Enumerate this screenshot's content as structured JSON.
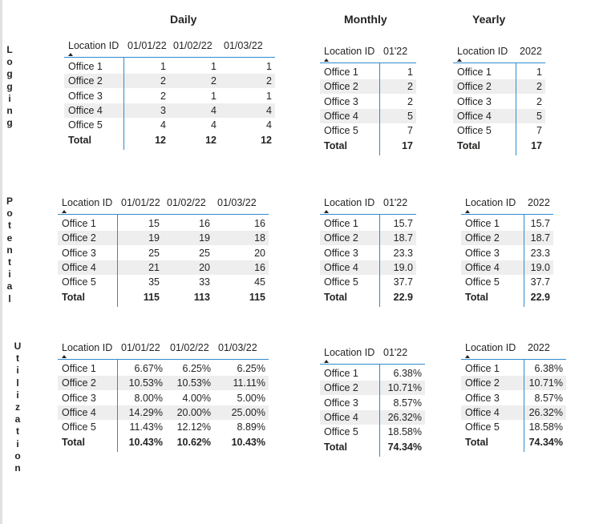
{
  "columns": {
    "daily": "Daily",
    "monthly": "Monthly",
    "yearly": "Yearly"
  },
  "rows": {
    "logging": "Logging",
    "potential": "Potential",
    "utilization": "Utilization"
  },
  "tables": {
    "logging_daily": {
      "headers": [
        "Location ID",
        "01/01/22",
        "01/02/22",
        "01/03/22"
      ],
      "rows": [
        [
          "Office 1",
          "1",
          "1",
          "1"
        ],
        [
          "Office 2",
          "2",
          "2",
          "2"
        ],
        [
          "Office 3",
          "2",
          "1",
          "1"
        ],
        [
          "Office 4",
          "3",
          "4",
          "4"
        ],
        [
          "Office 5",
          "4",
          "4",
          "4"
        ]
      ],
      "total": [
        "Total",
        "12",
        "12",
        "12"
      ]
    },
    "logging_monthly": {
      "headers": [
        "Location ID",
        "01'22"
      ],
      "rows": [
        [
          "Office 1",
          "1"
        ],
        [
          "Office 2",
          "2"
        ],
        [
          "Office 3",
          "2"
        ],
        [
          "Office 4",
          "5"
        ],
        [
          "Office 5",
          "7"
        ]
      ],
      "total": [
        "Total",
        "17"
      ]
    },
    "logging_yearly": {
      "headers": [
        "Location ID",
        "2022"
      ],
      "rows": [
        [
          "Office 1",
          "1"
        ],
        [
          "Office 2",
          "2"
        ],
        [
          "Office 3",
          "2"
        ],
        [
          "Office 4",
          "5"
        ],
        [
          "Office 5",
          "7"
        ]
      ],
      "total": [
        "Total",
        "17"
      ]
    },
    "potential_daily": {
      "headers": [
        "Location ID",
        "01/01/22",
        "01/02/22",
        "01/03/22"
      ],
      "rows": [
        [
          "Office 1",
          "15",
          "16",
          "16"
        ],
        [
          "Office 2",
          "19",
          "19",
          "18"
        ],
        [
          "Office 3",
          "25",
          "25",
          "20"
        ],
        [
          "Office 4",
          "21",
          "20",
          "16"
        ],
        [
          "Office 5",
          "35",
          "33",
          "45"
        ]
      ],
      "total": [
        "Total",
        "115",
        "113",
        "115"
      ]
    },
    "potential_monthly": {
      "headers": [
        "Location ID",
        "01'22"
      ],
      "rows": [
        [
          "Office 1",
          "15.7"
        ],
        [
          "Office 2",
          "18.7"
        ],
        [
          "Office 3",
          "23.3"
        ],
        [
          "Office 4",
          "19.0"
        ],
        [
          "Office 5",
          "37.7"
        ]
      ],
      "total": [
        "Total",
        "22.9"
      ]
    },
    "potential_yearly": {
      "headers": [
        "Location ID",
        "2022"
      ],
      "rows": [
        [
          "Office 1",
          "15.7"
        ],
        [
          "Office 2",
          "18.7"
        ],
        [
          "Office 3",
          "23.3"
        ],
        [
          "Office 4",
          "19.0"
        ],
        [
          "Office 5",
          "37.7"
        ]
      ],
      "total": [
        "Total",
        "22.9"
      ]
    },
    "utilization_daily": {
      "headers": [
        "Location ID",
        "01/01/22",
        "01/02/22",
        "01/03/22"
      ],
      "rows": [
        [
          "Office 1",
          "6.67%",
          "6.25%",
          "6.25%"
        ],
        [
          "Office 2",
          "10.53%",
          "10.53%",
          "11.11%"
        ],
        [
          "Office 3",
          "8.00%",
          "4.00%",
          "5.00%"
        ],
        [
          "Office 4",
          "14.29%",
          "20.00%",
          "25.00%"
        ],
        [
          "Office 5",
          "11.43%",
          "12.12%",
          "8.89%"
        ]
      ],
      "total": [
        "Total",
        "10.43%",
        "10.62%",
        "10.43%"
      ]
    },
    "utilization_monthly": {
      "headers": [
        "Location ID",
        "01'22"
      ],
      "rows": [
        [
          "Office 1",
          "6.38%"
        ],
        [
          "Office 2",
          "10.71%"
        ],
        [
          "Office 3",
          "8.57%"
        ],
        [
          "Office 4",
          "26.32%"
        ],
        [
          "Office 5",
          "18.58%"
        ]
      ],
      "total": [
        "Total",
        "74.34%"
      ]
    },
    "utilization_yearly": {
      "headers": [
        "Location ID",
        "2022"
      ],
      "rows": [
        [
          "Office 1",
          "6.38%"
        ],
        [
          "Office 2",
          "10.71%"
        ],
        [
          "Office 3",
          "8.57%"
        ],
        [
          "Office 4",
          "26.32%"
        ],
        [
          "Office 5",
          "18.58%"
        ]
      ],
      "total": [
        "Total",
        "74.34%"
      ]
    }
  },
  "colors": {
    "accent": "#2e8bd0",
    "banding": "#eeeeee",
    "text": "#252423"
  }
}
